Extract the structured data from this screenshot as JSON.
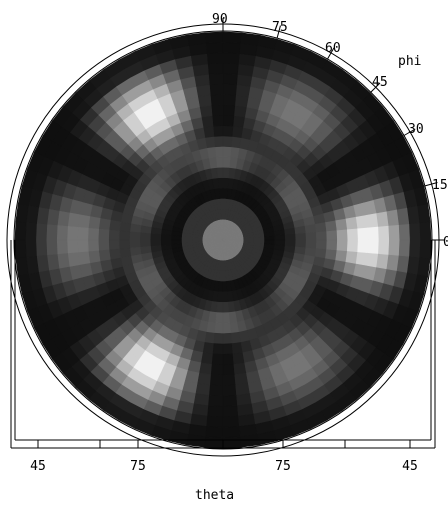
{
  "chart_data": {
    "type": "heatmap",
    "coordinate_system": "polar",
    "title": "",
    "xlabel": "theta",
    "ylabel": "phi",
    "colormap": "grayscale",
    "phi_ticks": [
      "90",
      "75",
      "60",
      "45",
      "30",
      "15",
      "0"
    ],
    "theta_ticks": [
      "45",
      "75",
      "75",
      "45"
    ],
    "phi_range": [
      0,
      90
    ],
    "theta_range": [
      45,
      90
    ],
    "features": {
      "angular_lobes_bright": 6,
      "angular_lobes_dim": 6,
      "center": "uniform mid-gray disk"
    },
    "pattern_grid": {
      "rings": 20,
      "sectors": 72
    }
  },
  "colors": {
    "background": "#ffffff",
    "frame": "#000000",
    "min_intensity": "#000000",
    "max_intensity": "#ffffff"
  }
}
